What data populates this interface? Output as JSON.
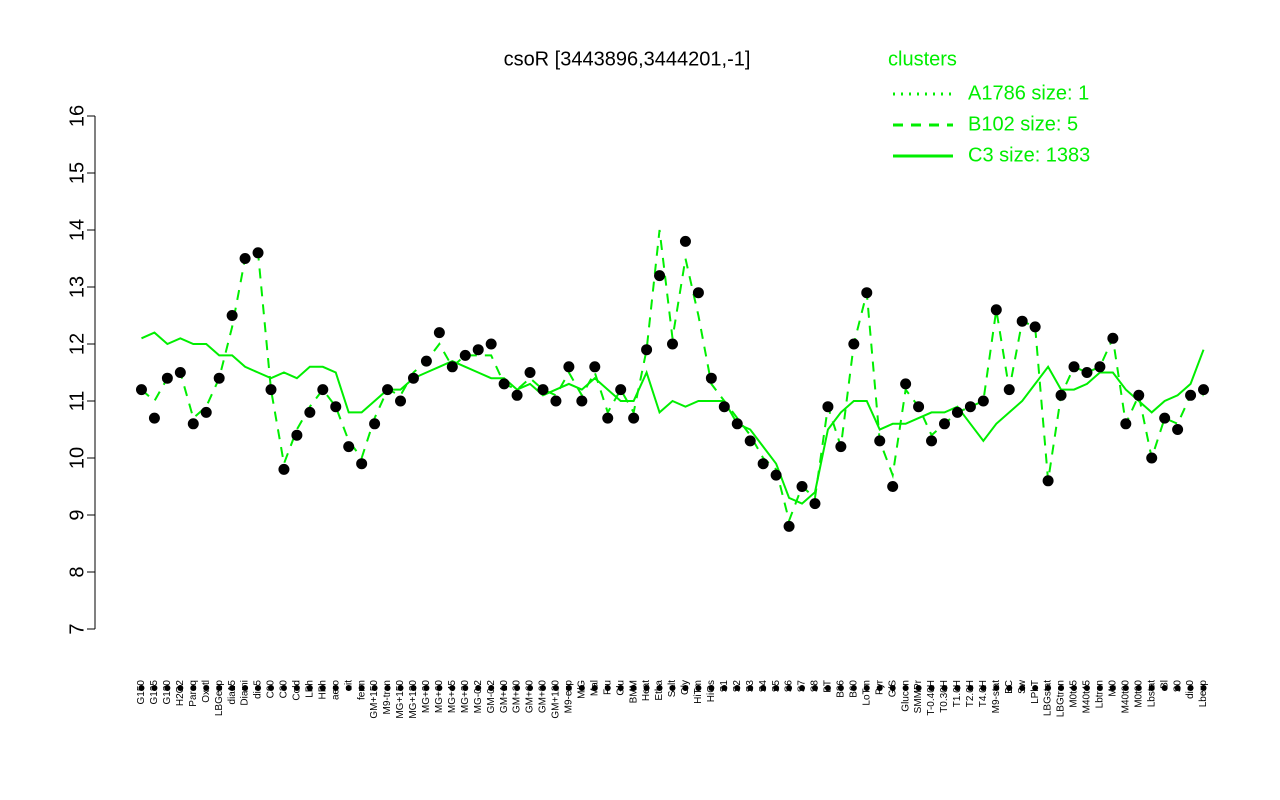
{
  "chart_data": {
    "type": "line",
    "title": "csoR [3443896,3444201,-1]",
    "legend_title": "clusters",
    "legend_position": "top-right",
    "categories": [
      "G150",
      "G135",
      "G180",
      "H2O2",
      "Paraq",
      "Oxctl",
      "LBGexp",
      "dia15",
      "Diami",
      "dia5",
      "C90",
      "C30",
      "Cold",
      "LPh",
      "HPh",
      "aero",
      "nit",
      "ferm",
      "GM+150",
      "M9-tran",
      "MG+150",
      "MG+120",
      "MG+90",
      "MG+60",
      "MG+45",
      "MG+30",
      "MG-0.2",
      "GM-0.2",
      "GM+10",
      "GM+30",
      "GM+60",
      "GM+90",
      "GM+120",
      "M9-exp",
      "M/G",
      "Mal",
      "Fru",
      "Glu",
      "BMM",
      "Heat",
      "Etha",
      "Salt",
      "Gly",
      "HiTm",
      "HiOs",
      "S1",
      "S2",
      "S3",
      "S4",
      "S5",
      "S6",
      "S7",
      "S8",
      "BT",
      "B36",
      "B60",
      "LoTm",
      "Pyr",
      "G/S",
      "Glucon",
      "SMMPr",
      "T-0.40H",
      "T0.30H",
      "T1.0H",
      "T2.0H",
      "T4.0H",
      "M9-stat",
      "BC",
      "Sw",
      "LPhT",
      "LBGstat",
      "LBGtran",
      "M0t45",
      "M40t45",
      "Lbtran",
      "Mt0",
      "M40t90",
      "M0t90",
      "Lbstat",
      "Bl",
      "S0",
      "dia0",
      "Lbexp"
    ],
    "values": [
      11.2,
      10.7,
      11.4,
      11.5,
      10.6,
      10.8,
      11.4,
      12.5,
      13.5,
      13.6,
      11.2,
      9.8,
      10.4,
      10.8,
      11.2,
      10.9,
      10.2,
      9.9,
      10.6,
      11.2,
      11.0,
      11.4,
      11.7,
      12.2,
      11.6,
      11.8,
      11.9,
      12.0,
      11.3,
      11.1,
      11.5,
      11.2,
      11.0,
      11.6,
      11.0,
      11.6,
      10.7,
      11.2,
      10.7,
      11.9,
      13.2,
      12.0,
      13.8,
      12.9,
      11.4,
      10.9,
      10.6,
      10.3,
      9.9,
      9.7,
      8.8,
      9.5,
      9.2,
      10.9,
      10.2,
      12.0,
      12.9,
      10.3,
      9.5,
      11.3,
      10.9,
      10.3,
      10.6,
      10.8,
      10.9,
      11.0,
      12.6,
      11.2,
      12.4,
      12.3,
      9.6,
      11.1,
      11.6,
      11.5,
      11.6,
      12.1,
      10.6,
      11.1,
      10.0,
      10.7,
      10.5,
      11.1,
      11.2
    ],
    "marker_color": "#000000",
    "series": [
      {
        "name": "A1786 size: 1",
        "color": "#00ee00",
        "dash": "dotted",
        "values": [
          null,
          null,
          null,
          null,
          null,
          null,
          null,
          null,
          null,
          null,
          null,
          null,
          null,
          null,
          null,
          null,
          null,
          null,
          null,
          null,
          null,
          null,
          null,
          null,
          null,
          null,
          null,
          null,
          null,
          null,
          null,
          null,
          null,
          null,
          null,
          null,
          null,
          null,
          null,
          null,
          null,
          null,
          null,
          null,
          null,
          null,
          null,
          null,
          null,
          null,
          null,
          null,
          null,
          null,
          null,
          null,
          null,
          null,
          null,
          null,
          null,
          null,
          null,
          null,
          null,
          null,
          null,
          null,
          null,
          null,
          null,
          null,
          null,
          null,
          null,
          null,
          null,
          null,
          null,
          null,
          null,
          null,
          null
        ]
      },
      {
        "name": "B102 size: 5",
        "color": "#00ee00",
        "dash": "dashed",
        "values": [
          11.2,
          11.0,
          11.4,
          11.5,
          10.7,
          10.9,
          11.4,
          12.3,
          13.5,
          13.6,
          11.2,
          9.9,
          10.5,
          10.9,
          11.2,
          10.9,
          10.3,
          10.0,
          10.7,
          11.2,
          11.1,
          11.5,
          11.7,
          12.0,
          11.6,
          11.8,
          11.8,
          11.8,
          11.3,
          11.2,
          11.4,
          11.2,
          11.1,
          11.5,
          11.1,
          11.5,
          10.8,
          11.2,
          10.8,
          11.9,
          14.0,
          12.1,
          13.5,
          12.5,
          11.3,
          11.0,
          10.7,
          10.4,
          10.0,
          9.8,
          8.9,
          9.5,
          9.3,
          10.9,
          10.2,
          12.0,
          12.9,
          10.3,
          9.7,
          11.2,
          10.9,
          10.4,
          10.6,
          10.8,
          10.9,
          11.0,
          12.6,
          11.2,
          12.4,
          12.3,
          9.6,
          11.1,
          11.6,
          11.5,
          11.6,
          12.1,
          10.6,
          11.1,
          10.0,
          10.7,
          10.6,
          11.1,
          11.1
        ]
      },
      {
        "name": "C3 size: 1383",
        "color": "#00ee00",
        "dash": "solid",
        "values": [
          12.1,
          12.2,
          12.0,
          12.1,
          12.0,
          12.0,
          11.8,
          11.8,
          11.6,
          11.5,
          11.4,
          11.5,
          11.4,
          11.6,
          11.6,
          11.5,
          10.8,
          10.8,
          11.0,
          11.2,
          11.2,
          11.4,
          11.5,
          11.6,
          11.7,
          11.6,
          11.5,
          11.4,
          11.4,
          11.2,
          11.3,
          11.1,
          11.2,
          11.3,
          11.2,
          11.4,
          11.2,
          11.0,
          11.0,
          11.5,
          10.8,
          11.0,
          10.9,
          11.0,
          11.0,
          11.0,
          10.6,
          10.5,
          10.2,
          9.9,
          9.3,
          9.2,
          9.4,
          10.5,
          10.8,
          11.0,
          11.0,
          10.5,
          10.6,
          10.6,
          10.7,
          10.8,
          10.8,
          10.9,
          10.6,
          10.3,
          10.6,
          10.8,
          11.0,
          11.3,
          11.6,
          11.2,
          11.2,
          11.3,
          11.5,
          11.5,
          11.2,
          11.0,
          10.8,
          11.0,
          11.1,
          11.3,
          11.9
        ]
      }
    ],
    "ylim": [
      7,
      16
    ],
    "yticks": [
      7,
      8,
      9,
      10,
      11,
      12,
      13,
      14,
      15,
      16
    ]
  }
}
